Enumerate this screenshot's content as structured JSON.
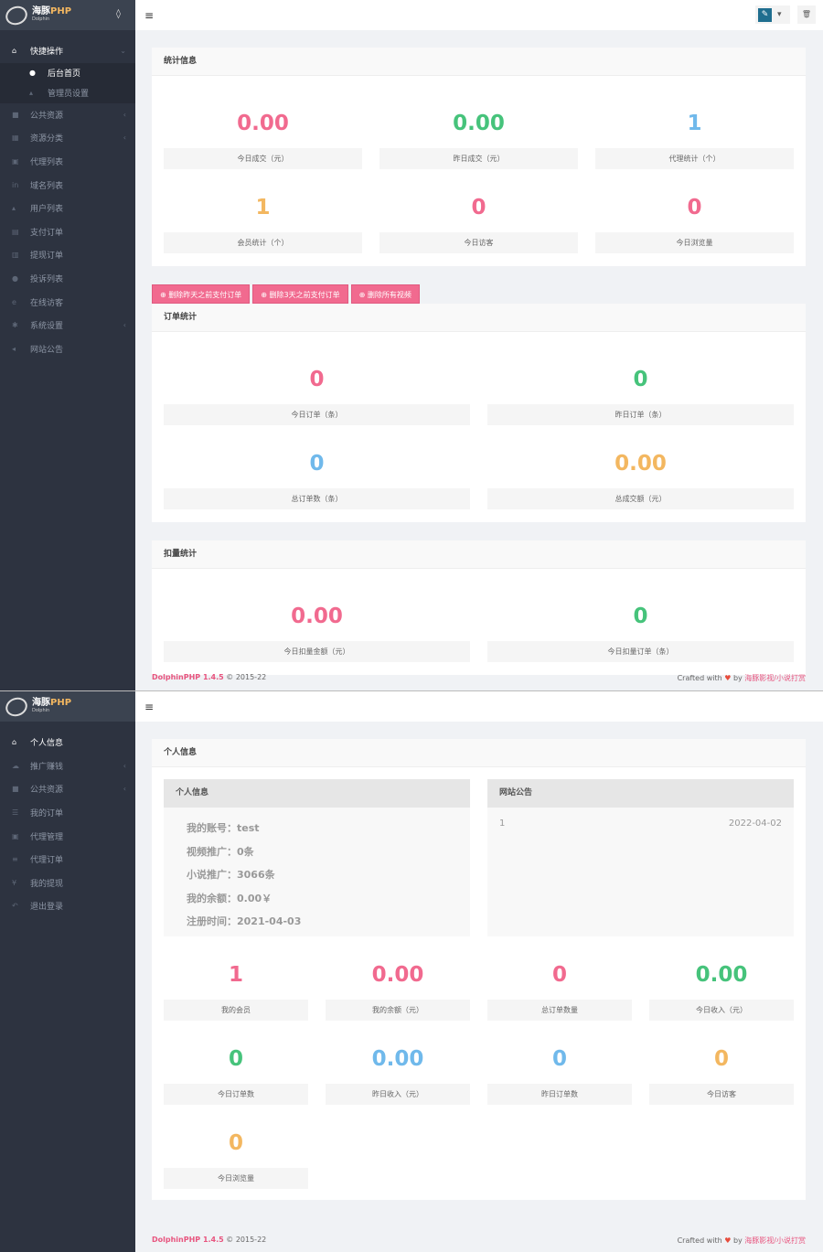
{
  "colors": {
    "pink": "#f16a8f",
    "green": "#46c37b",
    "blue": "#70b9eb",
    "orange": "#f3b760"
  },
  "brand": {
    "name": "海豚",
    "suffix": "PHP",
    "sub": "Dolphin"
  },
  "admin": {
    "sidebar": [
      {
        "icon": "folder-open-icon",
        "glyph": "⌂",
        "label": "快捷操作",
        "chevron": "⌄",
        "active": true
      },
      {
        "icon": "dashboard-icon",
        "glyph": "●",
        "label": "后台首页",
        "sub": true,
        "active": true
      },
      {
        "icon": "user-icon",
        "glyph": "▴",
        "label": "管理员设置",
        "sub": true
      },
      {
        "icon": "video-icon",
        "glyph": "■",
        "label": "公共资源",
        "chevron": "‹"
      },
      {
        "icon": "th-large-icon",
        "glyph": "▦",
        "label": "资源分类",
        "chevron": "‹"
      },
      {
        "icon": "users-icon",
        "glyph": "▣",
        "label": "代理列表"
      },
      {
        "icon": "linkedin-icon",
        "glyph": "in",
        "label": "域名列表"
      },
      {
        "icon": "user-icon",
        "glyph": "▴",
        "label": "用户列表"
      },
      {
        "icon": "calculator-icon",
        "glyph": "▤",
        "label": "支付订单"
      },
      {
        "icon": "bank-icon",
        "glyph": "▥",
        "label": "提现订单"
      },
      {
        "icon": "info-circle-icon",
        "glyph": "●",
        "label": "投诉列表"
      },
      {
        "icon": "ie-icon",
        "glyph": "e",
        "label": "在线访客"
      },
      {
        "icon": "cog-icon",
        "glyph": "✱",
        "label": "系统设置",
        "chevron": "‹"
      },
      {
        "icon": "bullhorn-icon",
        "glyph": "◂",
        "label": "网站公告"
      }
    ],
    "stats_title": "统计信息",
    "stats": [
      {
        "value": "0.00",
        "label": "今日成交（元）",
        "color": "pink"
      },
      {
        "value": "0.00",
        "label": "昨日成交（元）",
        "color": "green"
      },
      {
        "value": "1",
        "label": "代理统计（个）",
        "color": "blue"
      },
      {
        "value": "1",
        "label": "会员统计（个）",
        "color": "orange"
      },
      {
        "value": "0",
        "label": "今日访客",
        "color": "pink"
      },
      {
        "value": "0",
        "label": "今日浏览量",
        "color": "pink"
      }
    ],
    "buttons": [
      "删除昨天之前支付订单",
      "删除3天之前支付订单",
      "删除所有视频"
    ],
    "orders_title": "订单统计",
    "orders": [
      {
        "value": "0",
        "label": "今日订单（条）",
        "color": "pink"
      },
      {
        "value": "0",
        "label": "昨日订单（条）",
        "color": "green"
      },
      {
        "value": "0",
        "label": "总订单数（条）",
        "color": "blue"
      },
      {
        "value": "0.00",
        "label": "总成交额（元）",
        "color": "orange"
      }
    ],
    "deduct_title": "扣量统计",
    "deduct": [
      {
        "value": "0.00",
        "label": "今日扣量金额（元）",
        "color": "pink"
      },
      {
        "value": "0",
        "label": "今日扣量订单（条）",
        "color": "green"
      }
    ]
  },
  "footer": {
    "product": "DolphinPHP 1.4.5",
    "copy": "© 2015-22",
    "crafted": "Crafted with",
    "by": "by",
    "author": "海豚影视/小说打赏"
  },
  "user": {
    "sidebar": [
      {
        "icon": "home-icon",
        "glyph": "⌂",
        "label": "个人信息",
        "active": true
      },
      {
        "icon": "cloud-icon",
        "glyph": "☁",
        "label": "推广赚钱",
        "chevron": "‹"
      },
      {
        "icon": "video-icon",
        "glyph": "■",
        "label": "公共资源",
        "chevron": "‹"
      },
      {
        "icon": "list-icon",
        "glyph": "☰",
        "label": "我的订单"
      },
      {
        "icon": "users-icon",
        "glyph": "▣",
        "label": "代理管理"
      },
      {
        "icon": "bars-icon",
        "glyph": "≡",
        "label": "代理订单"
      },
      {
        "icon": "yen-icon",
        "glyph": "¥",
        "label": "我的提现"
      },
      {
        "icon": "reply-icon",
        "glyph": "↶",
        "label": "退出登录"
      }
    ],
    "title": "个人信息",
    "info_title": "个人信息",
    "info": [
      "我的账号：test",
      "视频推广：0条",
      "小说推广：3066条",
      "我的余额：0.00￥",
      "注册时间：2021-04-03"
    ],
    "notice_title": "网站公告",
    "notices": [
      {
        "title": "1",
        "date": "2022-04-02"
      }
    ],
    "stats": [
      {
        "value": "1",
        "label": "我的会员",
        "color": "pink"
      },
      {
        "value": "0.00",
        "label": "我的余额（元）",
        "color": "pink"
      },
      {
        "value": "0",
        "label": "总订单数量",
        "color": "pink"
      },
      {
        "value": "0.00",
        "label": "今日收入（元）",
        "color": "green"
      },
      {
        "value": "0",
        "label": "今日订单数",
        "color": "green"
      },
      {
        "value": "0.00",
        "label": "昨日收入（元）",
        "color": "blue"
      },
      {
        "value": "0",
        "label": "昨日订单数",
        "color": "blue"
      },
      {
        "value": "0",
        "label": "今日访客",
        "color": "orange"
      },
      {
        "value": "0",
        "label": "今日浏览量",
        "color": "orange"
      }
    ]
  }
}
